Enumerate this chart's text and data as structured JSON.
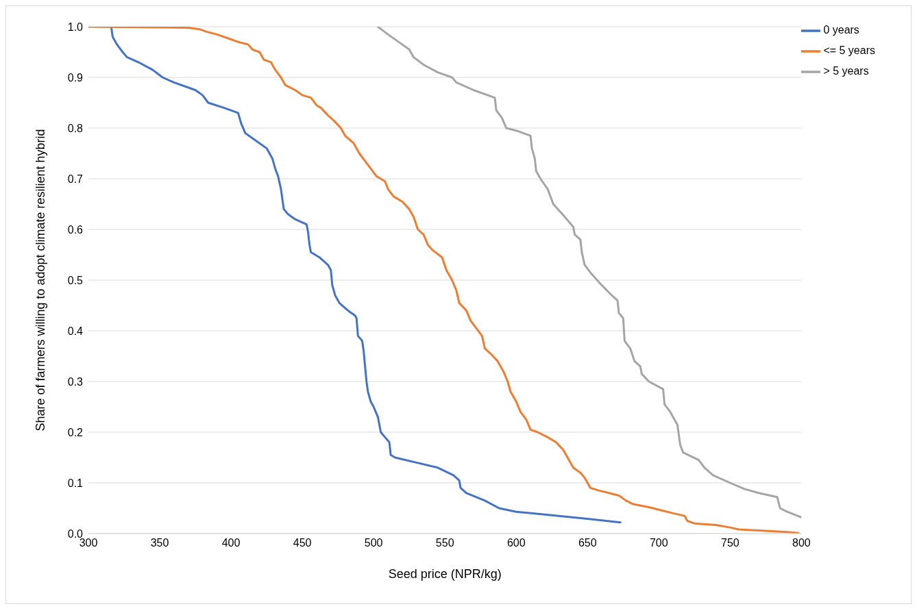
{
  "chart_data": {
    "type": "line",
    "xlabel": "Seed price (NPR/kg)",
    "ylabel": "Share of farmers willing to adopt climate resilient hybrid",
    "xlim": [
      300,
      800
    ],
    "xticks": [
      300,
      350,
      400,
      450,
      500,
      550,
      600,
      650,
      700,
      750,
      800
    ],
    "ylim": [
      0,
      1
    ],
    "yticks": [
      {
        "value": 0,
        "label": "0.0"
      },
      {
        "value": 0.1,
        "label": "0.1"
      },
      {
        "value": 0.2,
        "label": "0.2"
      },
      {
        "value": 0.3,
        "label": "0.3"
      },
      {
        "value": 0.4,
        "label": "0.4"
      },
      {
        "value": 0.5,
        "label": "0.5"
      },
      {
        "value": 0.6,
        "label": "0.6"
      },
      {
        "value": 0.7,
        "label": "0.7"
      },
      {
        "value": 0.8,
        "label": "0.8"
      },
      {
        "value": 0.9,
        "label": "0.9"
      },
      {
        "value": 1,
        "label": "1.0"
      }
    ],
    "grid": "y",
    "legend": "top right",
    "marker": "none",
    "line_style": "solid",
    "series": [
      {
        "name": "0 years",
        "color": "#4472c4",
        "x": [
          316,
          317,
          320,
          324,
          327,
          335,
          345,
          352,
          360,
          375,
          380,
          384,
          395,
          405,
          407,
          410,
          415,
          425,
          429,
          431,
          433,
          435,
          436,
          437,
          440,
          445,
          453,
          454,
          455,
          456,
          462,
          468,
          470,
          471,
          473,
          476,
          482,
          487,
          488,
          489,
          492,
          493,
          494,
          495,
          496,
          498,
          500,
          503,
          505,
          508,
          511,
          512,
          515,
          530,
          545,
          556,
          560,
          561,
          565,
          578,
          588,
          600,
          625,
          650,
          673
        ],
        "values": [
          1.0,
          0.98,
          0.965,
          0.95,
          0.94,
          0.93,
          0.915,
          0.9,
          0.89,
          0.875,
          0.865,
          0.85,
          0.84,
          0.83,
          0.81,
          0.79,
          0.78,
          0.76,
          0.74,
          0.72,
          0.705,
          0.68,
          0.66,
          0.64,
          0.63,
          0.62,
          0.61,
          0.595,
          0.57,
          0.555,
          0.545,
          0.53,
          0.52,
          0.49,
          0.47,
          0.455,
          0.44,
          0.43,
          0.425,
          0.39,
          0.38,
          0.36,
          0.33,
          0.3,
          0.28,
          0.26,
          0.25,
          0.23,
          0.2,
          0.19,
          0.18,
          0.155,
          0.15,
          0.14,
          0.13,
          0.115,
          0.105,
          0.09,
          0.08,
          0.065,
          0.05,
          0.043,
          0.036,
          0.029,
          0.022
        ]
      },
      {
        "name": "<= 5 years",
        "color": "#ed7d31",
        "x": [
          300,
          370,
          378,
          383,
          390,
          400,
          405,
          412,
          415,
          420,
          423,
          428,
          431,
          435,
          438,
          445,
          450,
          456,
          460,
          463,
          468,
          472,
          477,
          480,
          486,
          490,
          494,
          498,
          502,
          508,
          510,
          514,
          520,
          525,
          528,
          531,
          535,
          538,
          541,
          548,
          551,
          555,
          558,
          560,
          565,
          568,
          572,
          576,
          578,
          582,
          587,
          591,
          594,
          596,
          600,
          603,
          607,
          610,
          615,
          622,
          628,
          633,
          637,
          640,
          645,
          648,
          652,
          658,
          665,
          672,
          677,
          682,
          693,
          703,
          710,
          718,
          720,
          725,
          740,
          750,
          756,
          770,
          790,
          798
        ],
        "values": [
          1.0,
          0.998,
          0.995,
          0.99,
          0.985,
          0.975,
          0.97,
          0.965,
          0.955,
          0.95,
          0.935,
          0.93,
          0.915,
          0.9,
          0.885,
          0.875,
          0.865,
          0.86,
          0.845,
          0.84,
          0.825,
          0.815,
          0.8,
          0.785,
          0.77,
          0.75,
          0.735,
          0.72,
          0.705,
          0.695,
          0.68,
          0.665,
          0.655,
          0.64,
          0.625,
          0.6,
          0.59,
          0.57,
          0.56,
          0.545,
          0.52,
          0.5,
          0.48,
          0.455,
          0.44,
          0.42,
          0.405,
          0.39,
          0.365,
          0.355,
          0.34,
          0.32,
          0.3,
          0.28,
          0.26,
          0.24,
          0.225,
          0.205,
          0.2,
          0.19,
          0.18,
          0.165,
          0.145,
          0.13,
          0.12,
          0.11,
          0.09,
          0.085,
          0.08,
          0.075,
          0.065,
          0.058,
          0.052,
          0.045,
          0.04,
          0.035,
          0.025,
          0.02,
          0.017,
          0.012,
          0.008,
          0.006,
          0.003,
          0.001
        ]
      },
      {
        "name": "> 5 years",
        "color": "#a5a5a5",
        "x": [
          503,
          510,
          520,
          525,
          528,
          535,
          545,
          555,
          558,
          570,
          585,
          586,
          590,
          593,
          600,
          610,
          611,
          613,
          614,
          617,
          622,
          626,
          634,
          640,
          641,
          645,
          646,
          648,
          652,
          660,
          667,
          671,
          672,
          675,
          676,
          680,
          683,
          687,
          688,
          693,
          703,
          704,
          708,
          713,
          715,
          717,
          728,
          732,
          738,
          750,
          760,
          770,
          783,
          785,
          790,
          800
        ],
        "values": [
          1.0,
          0.985,
          0.965,
          0.955,
          0.94,
          0.925,
          0.91,
          0.9,
          0.89,
          0.875,
          0.86,
          0.835,
          0.82,
          0.8,
          0.795,
          0.785,
          0.76,
          0.74,
          0.715,
          0.7,
          0.68,
          0.65,
          0.625,
          0.605,
          0.59,
          0.58,
          0.555,
          0.53,
          0.515,
          0.49,
          0.47,
          0.46,
          0.435,
          0.425,
          0.38,
          0.365,
          0.34,
          0.33,
          0.315,
          0.3,
          0.285,
          0.255,
          0.24,
          0.215,
          0.175,
          0.16,
          0.145,
          0.13,
          0.115,
          0.1,
          0.088,
          0.08,
          0.072,
          0.05,
          0.043,
          0.032
        ]
      }
    ]
  }
}
